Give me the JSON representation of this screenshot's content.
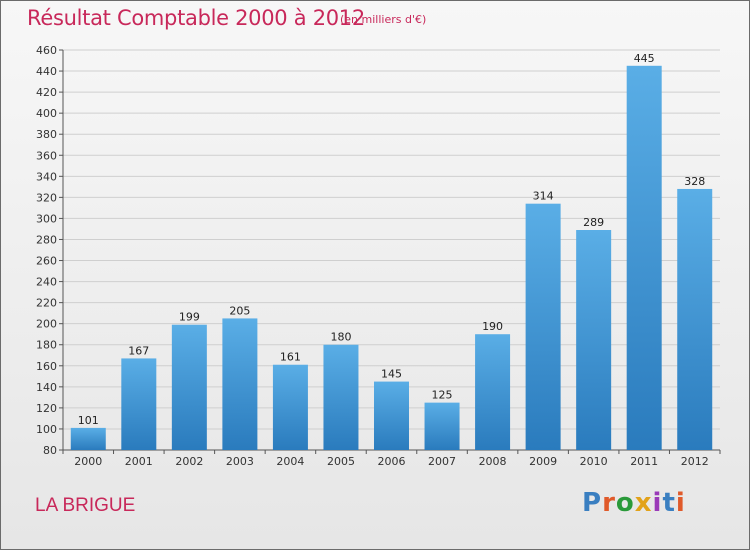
{
  "header": {
    "title": "Résultat Comptable 2000 à 2012",
    "subtitle": "(en milliers d'€)"
  },
  "footer": {
    "town": "LA BRIGUE",
    "logo": "Proxiti",
    "logo_colors": [
      "#3a7fc1",
      "#e05a2a",
      "#2a9a3a",
      "#e2a21a",
      "#9a3ab8",
      "#3a7fc1",
      "#e05a2a"
    ]
  },
  "colors": {
    "accent": "#c8285a",
    "bar_light": "#5aaee6",
    "bar_dark": "#2a7bbd"
  },
  "chart_data": {
    "type": "bar",
    "categories": [
      "2000",
      "2001",
      "2002",
      "2003",
      "2004",
      "2005",
      "2006",
      "2007",
      "2008",
      "2009",
      "2010",
      "2011",
      "2012"
    ],
    "values": [
      101,
      167,
      199,
      205,
      161,
      180,
      145,
      125,
      190,
      314,
      289,
      445,
      328
    ],
    "ylim": [
      80,
      460
    ],
    "yticks": [
      80,
      100,
      120,
      140,
      160,
      180,
      200,
      220,
      240,
      260,
      280,
      300,
      320,
      340,
      360,
      380,
      400,
      420,
      440,
      460
    ],
    "grid": true
  }
}
